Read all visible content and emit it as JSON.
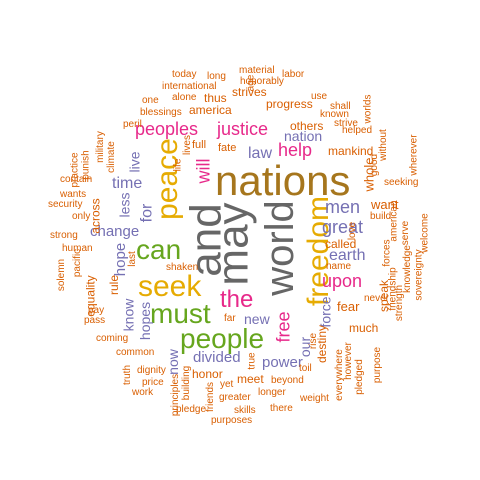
{
  "words": [
    {
      "text": "and",
      "color": "#666666"
    },
    {
      "text": "may",
      "color": "#666666"
    },
    {
      "text": "world",
      "color": "#666666"
    },
    {
      "text": "nations",
      "color": "#a6761d"
    },
    {
      "text": "freedom",
      "color": "#e6ab02"
    },
    {
      "text": "peace",
      "color": "#e6ab02"
    },
    {
      "text": "seek",
      "color": "#e6ab02"
    },
    {
      "text": "people",
      "color": "#66a61e"
    },
    {
      "text": "must",
      "color": "#66a61e"
    },
    {
      "text": "can",
      "color": "#66a61e"
    },
    {
      "text": "the",
      "color": "#e7298a"
    },
    {
      "text": "peoples",
      "color": "#e7298a"
    },
    {
      "text": "justice",
      "color": "#e7298a"
    },
    {
      "text": "help",
      "color": "#e7298a"
    },
    {
      "text": "will",
      "color": "#e7298a"
    },
    {
      "text": "free",
      "color": "#e7298a"
    },
    {
      "text": "upon",
      "color": "#e7298a"
    },
    {
      "text": "men",
      "color": "#7570b3"
    },
    {
      "text": "great",
      "color": "#7570b3"
    },
    {
      "text": "earth",
      "color": "#7570b3"
    },
    {
      "text": "law",
      "color": "#7570b3"
    },
    {
      "text": "nation",
      "color": "#7570b3"
    },
    {
      "text": "time",
      "color": "#7570b3"
    },
    {
      "text": "change",
      "color": "#7570b3"
    },
    {
      "text": "for",
      "color": "#7570b3"
    },
    {
      "text": "live",
      "color": "#7570b3"
    },
    {
      "text": "less",
      "color": "#7570b3"
    },
    {
      "text": "hope",
      "color": "#7570b3"
    },
    {
      "text": "know",
      "color": "#7570b3"
    },
    {
      "text": "hopes",
      "color": "#7570b3"
    },
    {
      "text": "new",
      "color": "#7570b3"
    },
    {
      "text": "divided",
      "color": "#7570b3"
    },
    {
      "text": "now",
      "color": "#7570b3"
    },
    {
      "text": "power",
      "color": "#7570b3"
    },
    {
      "text": "force",
      "color": "#7570b3"
    },
    {
      "text": "our",
      "color": "#7570b3"
    },
    {
      "text": "others",
      "color": "#d95f02"
    },
    {
      "text": "mankind",
      "color": "#d95f02"
    },
    {
      "text": "progress",
      "color": "#d95f02"
    },
    {
      "text": "strives",
      "color": "#d95f02"
    },
    {
      "text": "america",
      "color": "#d95f02"
    },
    {
      "text": "fate",
      "color": "#d95f02"
    },
    {
      "text": "full",
      "color": "#d95f02"
    },
    {
      "text": "thus",
      "color": "#d95f02"
    },
    {
      "text": "whole",
      "color": "#d95f02"
    },
    {
      "text": "want",
      "color": "#d95f02"
    },
    {
      "text": "called",
      "color": "#d95f02"
    },
    {
      "text": "fear",
      "color": "#d95f02"
    },
    {
      "text": "much",
      "color": "#d95f02"
    },
    {
      "text": "destiny",
      "color": "#d95f02"
    },
    {
      "text": "speak",
      "color": "#d95f02"
    },
    {
      "text": "honor",
      "color": "#d95f02"
    },
    {
      "text": "meet",
      "color": "#d95f02"
    },
    {
      "text": "rule",
      "color": "#d95f02"
    },
    {
      "text": "equality",
      "color": "#d95f02"
    },
    {
      "text": "across",
      "color": "#d95f02"
    },
    {
      "text": "today",
      "color": "#d95f02"
    },
    {
      "text": "long",
      "color": "#d95f02"
    },
    {
      "text": "material",
      "color": "#d95f02"
    },
    {
      "text": "labor",
      "color": "#d95f02"
    },
    {
      "text": "honorably",
      "color": "#d95f02"
    },
    {
      "text": "international",
      "color": "#d95f02"
    },
    {
      "text": "alone",
      "color": "#d95f02"
    },
    {
      "text": "age",
      "color": "#d95f02"
    },
    {
      "text": "use",
      "color": "#d95f02"
    },
    {
      "text": "one",
      "color": "#d95f02"
    },
    {
      "text": "shall",
      "color": "#d95f02"
    },
    {
      "text": "blessings",
      "color": "#d95f02"
    },
    {
      "text": "known",
      "color": "#d95f02"
    },
    {
      "text": "strive",
      "color": "#d95f02"
    },
    {
      "text": "worlds",
      "color": "#d95f02"
    },
    {
      "text": "helped",
      "color": "#d95f02"
    },
    {
      "text": "peril",
      "color": "#d95f02"
    },
    {
      "text": "military",
      "color": "#d95f02"
    },
    {
      "text": "practice",
      "color": "#d95f02"
    },
    {
      "text": "punish",
      "color": "#d95f02"
    },
    {
      "text": "climate",
      "color": "#d95f02"
    },
    {
      "text": "lives",
      "color": "#d95f02"
    },
    {
      "text": "life",
      "color": "#d95f02"
    },
    {
      "text": "good",
      "color": "#d95f02"
    },
    {
      "text": "without",
      "color": "#d95f02"
    },
    {
      "text": "wherever",
      "color": "#d95f02"
    },
    {
      "text": "seeking",
      "color": "#d95f02"
    },
    {
      "text": "wants",
      "color": "#d95f02"
    },
    {
      "text": "security",
      "color": "#d95f02"
    },
    {
      "text": "only",
      "color": "#d95f02"
    },
    {
      "text": "contain",
      "color": "#d95f02"
    },
    {
      "text": "strong",
      "color": "#d95f02"
    },
    {
      "text": "human",
      "color": "#d95f02"
    },
    {
      "text": "pacific",
      "color": "#d95f02"
    },
    {
      "text": "solemn",
      "color": "#d95f02"
    },
    {
      "text": "pay",
      "color": "#d95f02"
    },
    {
      "text": "pass",
      "color": "#d95f02"
    },
    {
      "text": "shaken",
      "color": "#d95f02"
    },
    {
      "text": "last",
      "color": "#d95f02"
    },
    {
      "text": "far",
      "color": "#d95f02"
    },
    {
      "text": "coming",
      "color": "#d95f02"
    },
    {
      "text": "common",
      "color": "#d95f02"
    },
    {
      "text": "dignity",
      "color": "#d95f02"
    },
    {
      "text": "truth",
      "color": "#d95f02"
    },
    {
      "text": "price",
      "color": "#d95f02"
    },
    {
      "text": "work",
      "color": "#d95f02"
    },
    {
      "text": "principles",
      "color": "#d95f02"
    },
    {
      "text": "building",
      "color": "#d95f02"
    },
    {
      "text": "pledge",
      "color": "#d95f02"
    },
    {
      "text": "friends",
      "color": "#d95f02"
    },
    {
      "text": "yet",
      "color": "#d95f02"
    },
    {
      "text": "true",
      "color": "#d95f02"
    },
    {
      "text": "greater",
      "color": "#d95f02"
    },
    {
      "text": "purposes",
      "color": "#d95f02"
    },
    {
      "text": "skills",
      "color": "#d95f02"
    },
    {
      "text": "there",
      "color": "#d95f02"
    },
    {
      "text": "beyond",
      "color": "#d95f02"
    },
    {
      "text": "longer",
      "color": "#d95f02"
    },
    {
      "text": "weight",
      "color": "#d95f02"
    },
    {
      "text": "toil",
      "color": "#d95f02"
    },
    {
      "text": "rise",
      "color": "#d95f02"
    },
    {
      "text": "everywhere",
      "color": "#d95f02"
    },
    {
      "text": "however",
      "color": "#d95f02"
    },
    {
      "text": "pledged",
      "color": "#d95f02"
    },
    {
      "text": "purpose",
      "color": "#d95f02"
    },
    {
      "text": "never",
      "color": "#d95f02"
    },
    {
      "text": "name",
      "color": "#d95f02"
    },
    {
      "text": "love",
      "color": "#d95f02"
    },
    {
      "text": "build",
      "color": "#d95f02"
    },
    {
      "text": "forces",
      "color": "#d95f02"
    },
    {
      "text": "american",
      "color": "#d95f02"
    },
    {
      "text": "serve",
      "color": "#d95f02"
    },
    {
      "text": "friendship",
      "color": "#d95f02"
    },
    {
      "text": "knowledge",
      "color": "#d95f02"
    },
    {
      "text": "sovereignty",
      "color": "#d95f02"
    },
    {
      "text": "strength",
      "color": "#d95f02"
    },
    {
      "text": "welcome",
      "color": "#d95f02"
    }
  ]
}
